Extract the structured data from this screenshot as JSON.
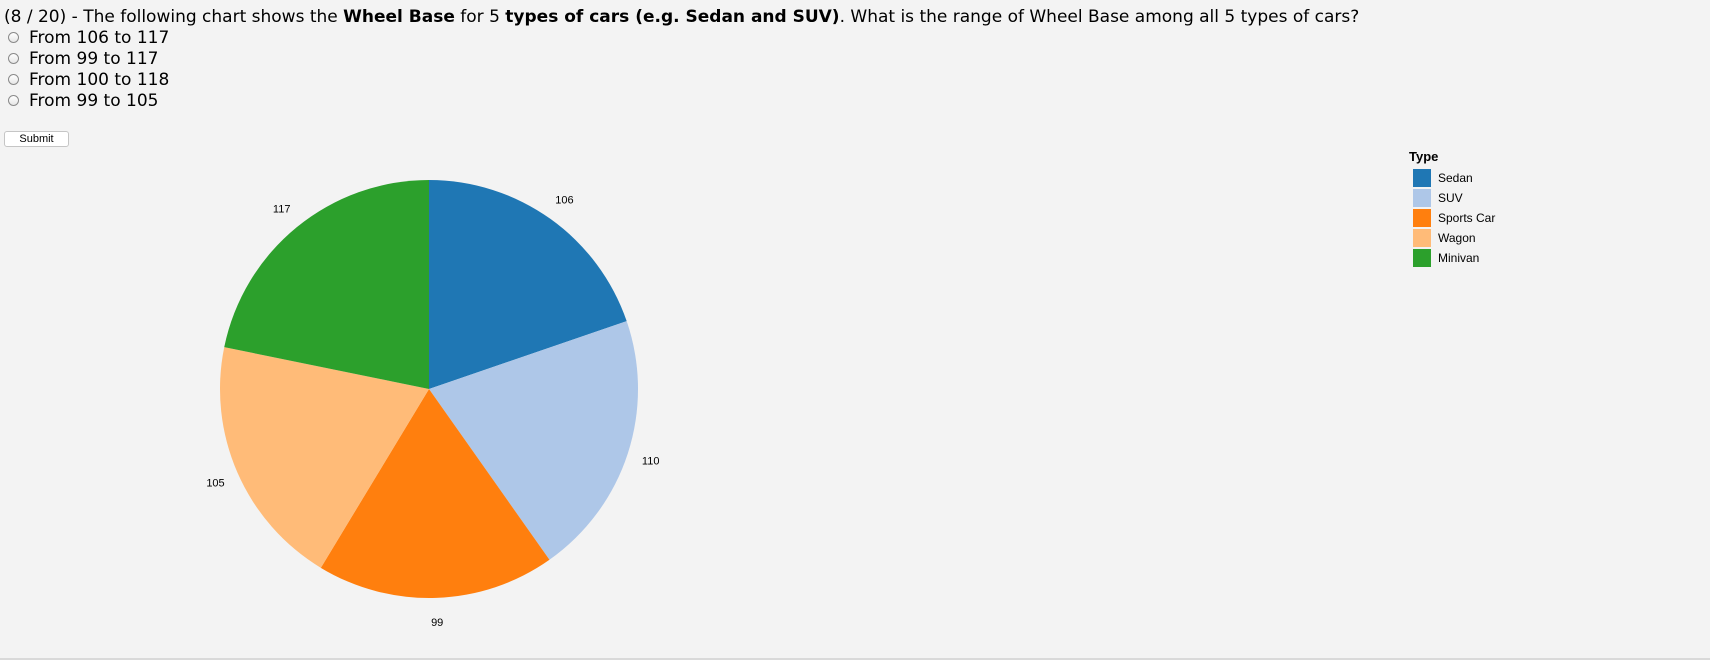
{
  "question": {
    "prefix": "(8 / 20) - The following chart shows the ",
    "metric": "Wheel Base",
    "middle": " for 5 ",
    "subject": "types of cars (e.g. Sedan and SUV)",
    "suffix": ". What is the range of Wheel Base among all 5 types of cars?"
  },
  "options": [
    "From 106 to 117",
    "From 99 to 117",
    "From 100 to 118",
    "From 99 to 105"
  ],
  "submit_label": "Submit",
  "chart_data": {
    "type": "pie",
    "categories": [
      "Sedan",
      "SUV",
      "Sports Car",
      "Wagon",
      "Minivan"
    ],
    "values": [
      106,
      110,
      99,
      105,
      117
    ],
    "colors": [
      "#1f77b4",
      "#aec7e8",
      "#ff7f0e",
      "#ffbb78",
      "#2ca02c"
    ],
    "start": "12 o'clock",
    "direction": "clockwise",
    "legend": {
      "title": "Type",
      "placement": "right"
    },
    "value_labels": true
  }
}
